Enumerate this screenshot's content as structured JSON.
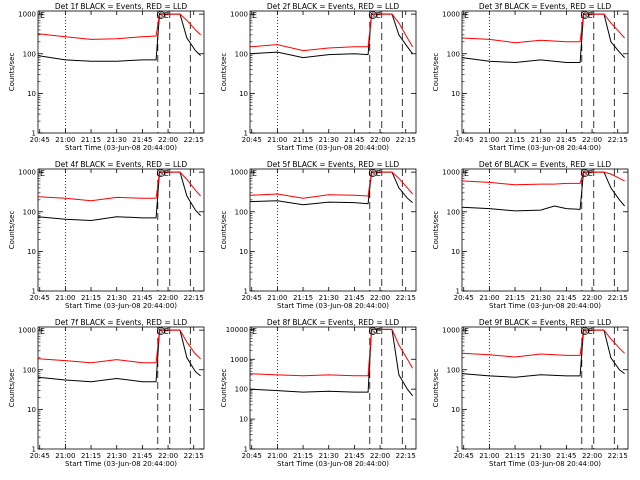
{
  "colors": {
    "events": "#000000",
    "lld": "#ff0000",
    "axes": "#000000"
  },
  "common": {
    "xtick_labels": [
      "20:45",
      "21:00",
      "21:15",
      "21:30",
      "21:45",
      "22:00",
      "22:15"
    ],
    "xlabel": "Start Time (03-Jun-08 20:44:00)",
    "ylabel": "Counts/sec",
    "ytick_labels": [
      "1",
      "10",
      "100",
      "1000"
    ],
    "marker_s": "S",
    "marker_e": "E"
  },
  "chart_data": [
    {
      "type": "line",
      "title": "Det 1f BLACK = Events, RED = LLD",
      "yscale": "log",
      "ylim": [
        1,
        1200
      ],
      "xlim": [
        "20:44",
        "22:21"
      ],
      "series": [
        {
          "name": "Events",
          "color": "#000000",
          "x": [
            "20:44",
            "21:00",
            "21:15",
            "21:30",
            "21:45",
            "21:53",
            "21:55",
            "22:07",
            "22:11",
            "22:16",
            "22:19"
          ],
          "y": [
            90,
            70,
            65,
            65,
            70,
            70,
            1000,
            1000,
            250,
            120,
            90
          ]
        },
        {
          "name": "LLD",
          "color": "#ff0000",
          "x": [
            "20:44",
            "21:00",
            "21:15",
            "21:30",
            "21:45",
            "21:53",
            "21:55",
            "22:07",
            "22:11",
            "22:16",
            "22:19"
          ],
          "y": [
            320,
            270,
            230,
            240,
            270,
            280,
            1000,
            1000,
            700,
            400,
            300
          ]
        }
      ],
      "vlines_dotted": [
        "21:00"
      ],
      "vlines_dashed": [
        "21:54",
        "22:01",
        "22:13"
      ]
    },
    {
      "type": "line",
      "title": "Det 2f BLACK = Events, RED = LLD",
      "yscale": "log",
      "ylim": [
        1,
        1200
      ],
      "xlim": [
        "20:44",
        "22:21"
      ],
      "series": [
        {
          "name": "Events",
          "color": "#000000",
          "x": [
            "20:44",
            "21:00",
            "21:15",
            "21:30",
            "21:45",
            "21:53",
            "21:55",
            "22:07",
            "22:11",
            "22:16",
            "22:19"
          ],
          "y": [
            100,
            110,
            80,
            95,
            100,
            95,
            1000,
            1000,
            300,
            150,
            100
          ]
        },
        {
          "name": "LLD",
          "color": "#ff0000",
          "x": [
            "20:44",
            "21:00",
            "21:15",
            "21:30",
            "21:45",
            "21:53",
            "21:55",
            "22:07",
            "22:11",
            "22:16",
            "22:19"
          ],
          "y": [
            150,
            170,
            120,
            140,
            150,
            150,
            1000,
            1000,
            600,
            250,
            150
          ]
        }
      ],
      "vlines_dotted": [
        "21:00"
      ],
      "vlines_dashed": [
        "21:54",
        "22:01",
        "22:13"
      ]
    },
    {
      "type": "line",
      "title": "Det 3f BLACK = Events, RED = LLD",
      "yscale": "log",
      "ylim": [
        1,
        1200
      ],
      "xlim": [
        "20:44",
        "22:21"
      ],
      "series": [
        {
          "name": "Events",
          "color": "#000000",
          "x": [
            "20:44",
            "21:00",
            "21:15",
            "21:30",
            "21:45",
            "21:53",
            "21:55",
            "22:07",
            "22:11",
            "22:16",
            "22:19"
          ],
          "y": [
            80,
            65,
            60,
            70,
            60,
            60,
            1000,
            1000,
            200,
            110,
            80
          ]
        },
        {
          "name": "LLD",
          "color": "#ff0000",
          "x": [
            "20:44",
            "21:00",
            "21:15",
            "21:30",
            "21:45",
            "21:53",
            "21:55",
            "22:07",
            "22:11",
            "22:16",
            "22:19"
          ],
          "y": [
            250,
            230,
            190,
            220,
            200,
            200,
            1000,
            1000,
            600,
            350,
            250
          ]
        }
      ],
      "vlines_dotted": [
        "21:00"
      ],
      "vlines_dashed": [
        "21:54",
        "22:01",
        "22:13"
      ]
    },
    {
      "type": "line",
      "title": "Det 4f BLACK = Events, RED = LLD",
      "yscale": "log",
      "ylim": [
        1,
        1200
      ],
      "xlim": [
        "20:44",
        "22:21"
      ],
      "series": [
        {
          "name": "Events",
          "color": "#000000",
          "x": [
            "20:44",
            "21:00",
            "21:15",
            "21:30",
            "21:45",
            "21:53",
            "21:55",
            "22:07",
            "22:11",
            "22:16",
            "22:19"
          ],
          "y": [
            75,
            65,
            60,
            75,
            70,
            70,
            1000,
            1000,
            250,
            110,
            80
          ]
        },
        {
          "name": "LLD",
          "color": "#ff0000",
          "x": [
            "20:44",
            "21:00",
            "21:15",
            "21:30",
            "21:45",
            "21:53",
            "21:55",
            "22:07",
            "22:11",
            "22:16",
            "22:19"
          ],
          "y": [
            240,
            220,
            190,
            230,
            220,
            220,
            1000,
            1000,
            650,
            350,
            250
          ]
        }
      ],
      "vlines_dotted": [
        "21:00"
      ],
      "vlines_dashed": [
        "21:54",
        "22:01",
        "22:13"
      ]
    },
    {
      "type": "line",
      "title": "Det 5f BLACK = Events, RED = LLD",
      "yscale": "log",
      "ylim": [
        1,
        1200
      ],
      "xlim": [
        "20:44",
        "22:21"
      ],
      "series": [
        {
          "name": "Events",
          "color": "#000000",
          "x": [
            "20:44",
            "21:00",
            "21:15",
            "21:30",
            "21:45",
            "21:53",
            "21:55",
            "22:07",
            "22:11",
            "22:16",
            "22:19"
          ],
          "y": [
            180,
            190,
            150,
            175,
            170,
            160,
            1000,
            1000,
            400,
            220,
            170
          ]
        },
        {
          "name": "LLD",
          "color": "#ff0000",
          "x": [
            "20:44",
            "21:00",
            "21:15",
            "21:30",
            "21:45",
            "21:53",
            "21:55",
            "22:07",
            "22:11",
            "22:16",
            "22:19"
          ],
          "y": [
            260,
            280,
            220,
            270,
            260,
            250,
            1000,
            1000,
            700,
            400,
            280
          ]
        }
      ],
      "vlines_dotted": [
        "21:00"
      ],
      "vlines_dashed": [
        "21:54",
        "22:01",
        "22:13"
      ]
    },
    {
      "type": "line",
      "title": "Det 6f BLACK = Events, RED = LLD",
      "yscale": "log",
      "ylim": [
        1,
        1200
      ],
      "xlim": [
        "20:44",
        "22:21"
      ],
      "series": [
        {
          "name": "Events",
          "color": "#000000",
          "x": [
            "20:44",
            "21:00",
            "21:15",
            "21:30",
            "21:38",
            "21:45",
            "21:53",
            "21:55",
            "22:07",
            "22:11",
            "22:16",
            "22:19"
          ],
          "y": [
            130,
            120,
            105,
            110,
            140,
            120,
            115,
            1000,
            1000,
            400,
            200,
            140
          ]
        },
        {
          "name": "LLD",
          "color": "#ff0000",
          "x": [
            "20:44",
            "21:00",
            "21:15",
            "21:30",
            "21:38",
            "21:45",
            "21:53",
            "21:55",
            "22:07",
            "22:11",
            "22:16",
            "22:19"
          ],
          "y": [
            600,
            550,
            480,
            500,
            500,
            520,
            520,
            1000,
            1000,
            900,
            700,
            600
          ]
        }
      ],
      "vlines_dotted": [
        "21:00"
      ],
      "vlines_dashed": [
        "21:54",
        "22:01",
        "22:13"
      ]
    },
    {
      "type": "line",
      "title": "Det 7f BLACK = Events, RED = LLD",
      "yscale": "log",
      "ylim": [
        1,
        1200
      ],
      "xlim": [
        "20:44",
        "22:21"
      ],
      "series": [
        {
          "name": "Events",
          "color": "#000000",
          "x": [
            "20:44",
            "21:00",
            "21:15",
            "21:30",
            "21:45",
            "21:53",
            "21:55",
            "22:07",
            "22:11",
            "22:16",
            "22:19"
          ],
          "y": [
            65,
            55,
            50,
            60,
            50,
            50,
            1000,
            1000,
            200,
            90,
            70
          ]
        },
        {
          "name": "LLD",
          "color": "#ff0000",
          "x": [
            "20:44",
            "21:00",
            "21:15",
            "21:30",
            "21:45",
            "21:53",
            "21:55",
            "22:07",
            "22:11",
            "22:16",
            "22:19"
          ],
          "y": [
            190,
            170,
            150,
            180,
            150,
            150,
            1000,
            1000,
            500,
            250,
            190
          ]
        }
      ],
      "vlines_dotted": [
        "21:00"
      ],
      "vlines_dashed": [
        "21:54",
        "22:01",
        "22:13"
      ]
    },
    {
      "type": "line",
      "title": "Det 8f BLACK = Events, RED = LLD",
      "yscale": "log",
      "ylim": [
        1,
        12000
      ],
      "xlim": [
        "20:44",
        "22:21"
      ],
      "series": [
        {
          "name": "Events",
          "color": "#000000",
          "x": [
            "20:44",
            "21:00",
            "21:15",
            "21:30",
            "21:45",
            "21:53",
            "21:55",
            "22:07",
            "22:11",
            "22:16",
            "22:19"
          ],
          "y": [
            100,
            90,
            80,
            85,
            80,
            80,
            10000,
            10000,
            300,
            100,
            60
          ]
        },
        {
          "name": "LLD",
          "color": "#ff0000",
          "x": [
            "20:44",
            "21:00",
            "21:15",
            "21:30",
            "21:45",
            "21:53",
            "21:55",
            "22:07",
            "22:11",
            "22:16",
            "22:19"
          ],
          "y": [
            330,
            300,
            280,
            300,
            280,
            280,
            10000,
            10000,
            3000,
            1000,
            500
          ]
        }
      ],
      "vlines_dotted": [
        "21:00"
      ],
      "vlines_dashed": [
        "21:54",
        "22:01",
        "22:13"
      ]
    },
    {
      "type": "line",
      "title": "Det 9f BLACK = Events, RED = LLD",
      "yscale": "log",
      "ylim": [
        1,
        1200
      ],
      "xlim": [
        "20:44",
        "22:21"
      ],
      "series": [
        {
          "name": "Events",
          "color": "#000000",
          "x": [
            "20:44",
            "21:00",
            "21:15",
            "21:30",
            "21:45",
            "21:53",
            "21:55",
            "22:07",
            "22:11",
            "22:16",
            "22:19"
          ],
          "y": [
            80,
            70,
            65,
            75,
            70,
            70,
            1000,
            1000,
            200,
            100,
            80
          ]
        },
        {
          "name": "LLD",
          "color": "#ff0000",
          "x": [
            "20:44",
            "21:00",
            "21:15",
            "21:30",
            "21:45",
            "21:53",
            "21:55",
            "22:07",
            "22:11",
            "22:16",
            "22:19"
          ],
          "y": [
            260,
            240,
            210,
            250,
            230,
            230,
            1000,
            1000,
            600,
            350,
            260
          ]
        }
      ],
      "vlines_dotted": [
        "21:00"
      ],
      "vlines_dashed": [
        "21:54",
        "22:01",
        "22:13"
      ]
    }
  ]
}
